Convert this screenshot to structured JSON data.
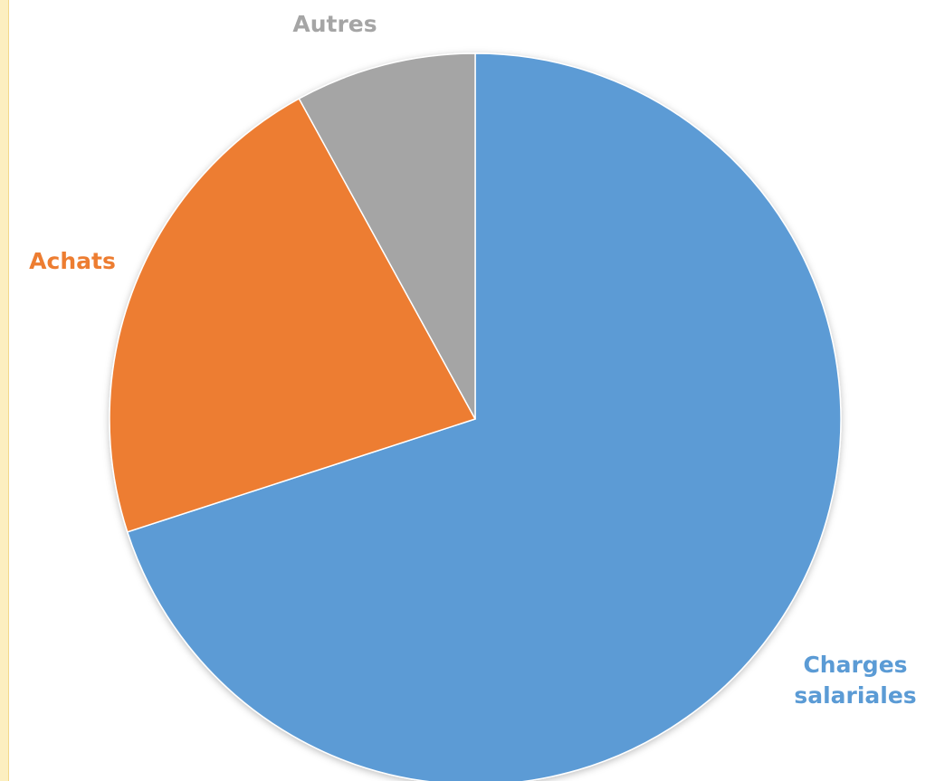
{
  "chart_data": {
    "type": "pie",
    "categories": [
      "Charges salariales",
      "Achats",
      "Autres"
    ],
    "values": [
      70,
      22,
      8
    ],
    "colors": [
      "#5b9bd5",
      "#ed7d31",
      "#a5a5a5"
    ]
  }
}
